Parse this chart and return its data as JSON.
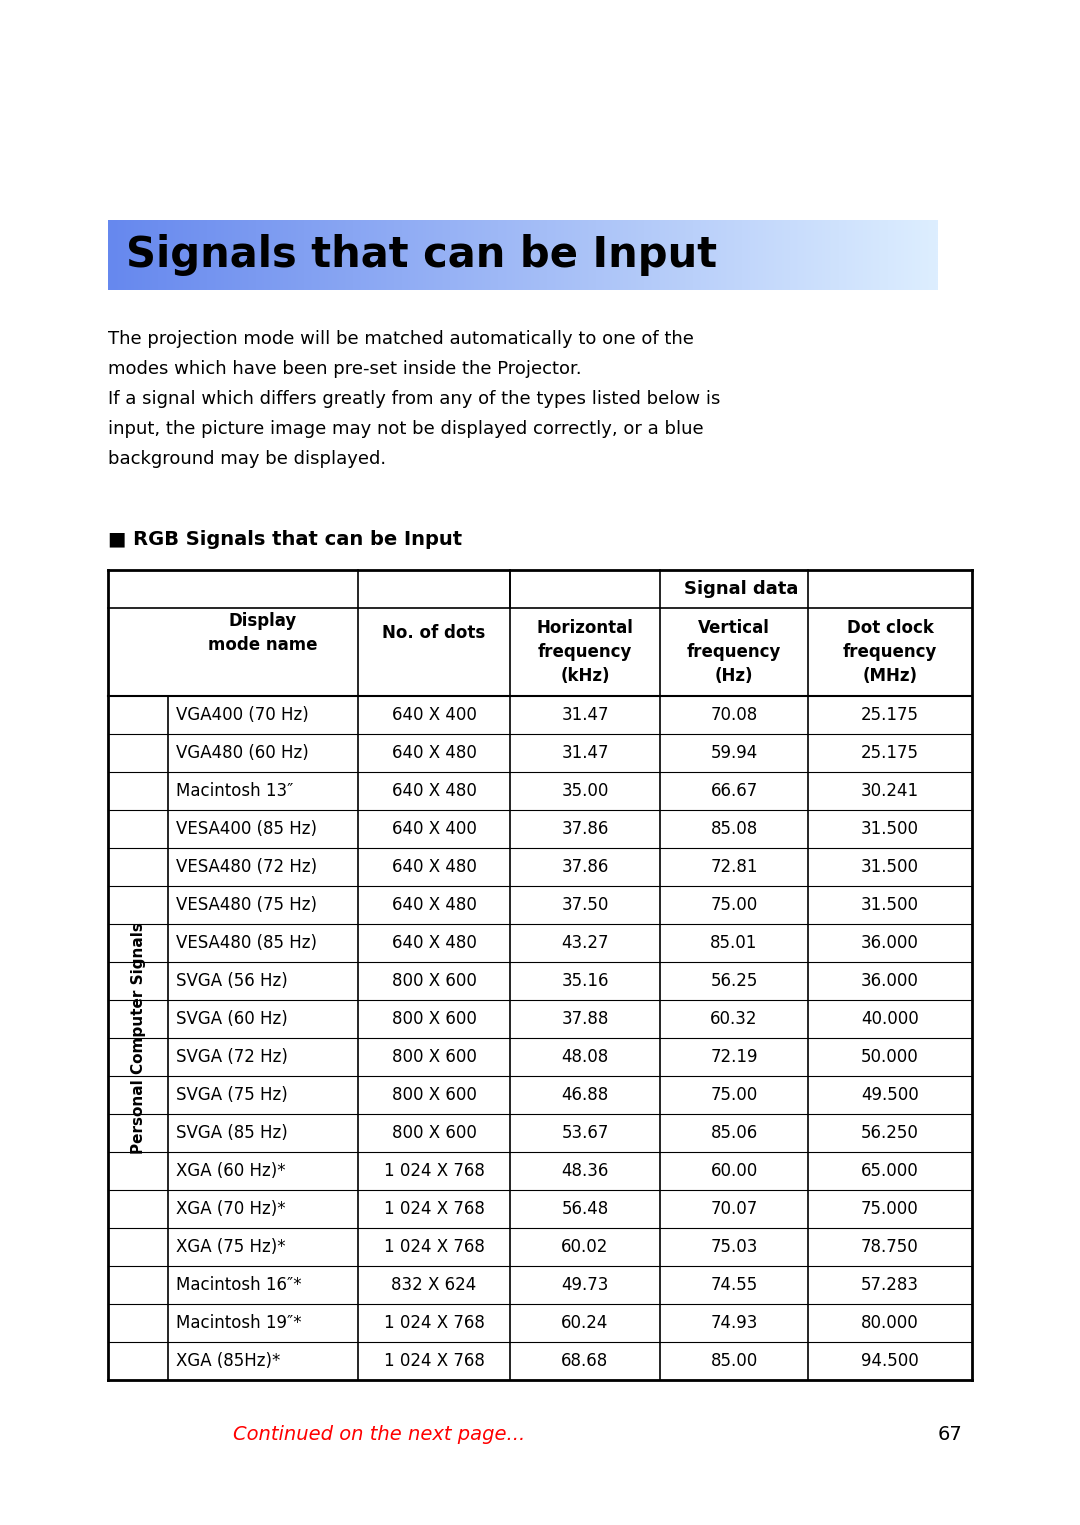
{
  "title": "Signals that can be Input",
  "title_bg_left": "#6688ee",
  "title_bg_right": "#ddeeff",
  "title_text_color": "#000000",
  "body_text": [
    "The projection mode will be matched automatically to one of the",
    "modes which have been pre-set inside the Projector.",
    "If a signal which differs greatly from any of the types listed below is",
    "input, the picture image may not be displayed correctly, or a blue",
    "background may be displayed."
  ],
  "section_title": "■ RGB Signals that can be Input",
  "side_label": "Personal Computer Signals",
  "rows": [
    [
      "VGA400 (70 Hz)",
      "640 X 400",
      "31.47",
      "70.08",
      "25.175"
    ],
    [
      "VGA480 (60 Hz)",
      "640 X 480",
      "31.47",
      "59.94",
      "25.175"
    ],
    [
      "Macintosh 13″",
      "640 X 480",
      "35.00",
      "66.67",
      "30.241"
    ],
    [
      "VESA400 (85 Hz)",
      "640 X 400",
      "37.86",
      "85.08",
      "31.500"
    ],
    [
      "VESA480 (72 Hz)",
      "640 X 480",
      "37.86",
      "72.81",
      "31.500"
    ],
    [
      "VESA480 (75 Hz)",
      "640 X 480",
      "37.50",
      "75.00",
      "31.500"
    ],
    [
      "VESA480 (85 Hz)",
      "640 X 480",
      "43.27",
      "85.01",
      "36.000"
    ],
    [
      "SVGA (56 Hz)",
      "800 X 600",
      "35.16",
      "56.25",
      "36.000"
    ],
    [
      "SVGA (60 Hz)",
      "800 X 600",
      "37.88",
      "60.32",
      "40.000"
    ],
    [
      "SVGA (72 Hz)",
      "800 X 600",
      "48.08",
      "72.19",
      "50.000"
    ],
    [
      "SVGA (75 Hz)",
      "800 X 600",
      "46.88",
      "75.00",
      "49.500"
    ],
    [
      "SVGA (85 Hz)",
      "800 X 600",
      "53.67",
      "85.06",
      "56.250"
    ],
    [
      "XGA (60 Hz)*",
      "1 024 X 768",
      "48.36",
      "60.00",
      "65.000"
    ],
    [
      "XGA (70 Hz)*",
      "1 024 X 768",
      "56.48",
      "70.07",
      "75.000"
    ],
    [
      "XGA (75 Hz)*",
      "1 024 X 768",
      "60.02",
      "75.03",
      "78.750"
    ],
    [
      "Macintosh 16″*",
      "832 X 624",
      "49.73",
      "74.55",
      "57.283"
    ],
    [
      "Macintosh 19″*",
      "1 024 X 768",
      "60.24",
      "74.93",
      "80.000"
    ],
    [
      "XGA (85Hz)*",
      "1 024 X 768",
      "68.68",
      "85.00",
      "94.500"
    ]
  ],
  "continued_text": "Continued on the next page...",
  "continued_color": "#ff0000",
  "page_number": "67",
  "background_color": "#ffffff",
  "table_border_color": "#000000",
  "text_color": "#000000"
}
